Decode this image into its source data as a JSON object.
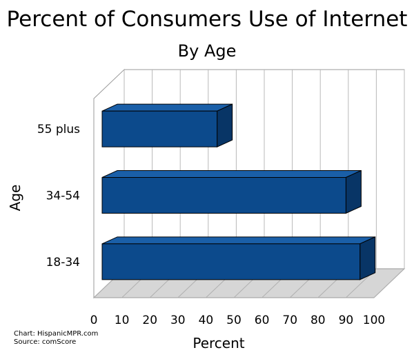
{
  "chart_data": {
    "type": "bar",
    "orientation": "horizontal",
    "title": "Percent of Consumers Use of Internet",
    "subtitle": "By Age",
    "xlabel": "Percent",
    "ylabel": "Age",
    "categories": [
      "18-34",
      "34-54",
      "55 plus"
    ],
    "values": [
      95,
      90,
      44
    ],
    "xlim": [
      0,
      100
    ],
    "xticks": [
      "0",
      "10",
      "20",
      "30",
      "40",
      "50",
      "60",
      "70",
      "80",
      "90",
      "100"
    ],
    "grid": true,
    "legend": "none",
    "bar_color": "#0c4a8c",
    "bar_top_color": "#1a5fa8",
    "bar_side_color": "#083566"
  },
  "footer": {
    "credit": "Chart: HispanicMPR.com",
    "source": "Source: comScore"
  }
}
